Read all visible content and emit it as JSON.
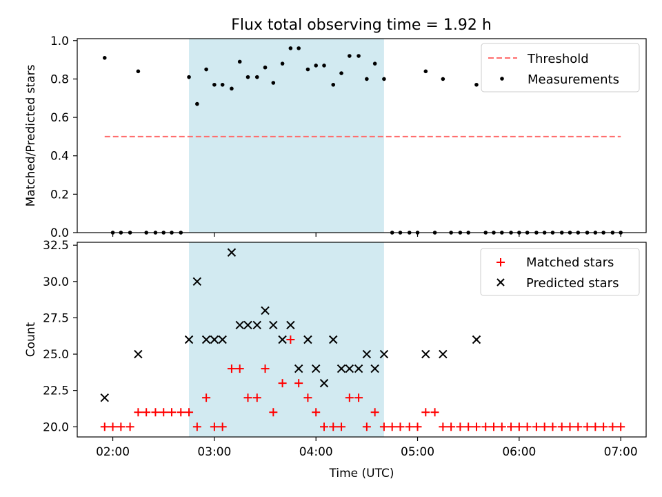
{
  "figure": {
    "title": "Flux total observing time = 1.92 h"
  },
  "chart_data": [
    {
      "type": "scatter",
      "ylabel": "Matched/Predicted stars",
      "xlabel": "",
      "xlim_hours": [
        1.65,
        7.25
      ],
      "ylim": [
        0,
        1.01
      ],
      "yticks": [
        0.0,
        0.2,
        0.4,
        0.6,
        0.8,
        1.0
      ],
      "ytick_labels": [
        "0.0",
        "0.2",
        "0.4",
        "0.6",
        "0.8",
        "1.0"
      ],
      "shaded_interval_hours": [
        2.75,
        4.67
      ],
      "shade_color": "#add8e6",
      "grid": false,
      "legend_position": "top-right",
      "threshold": {
        "name": "Threshold",
        "value": 0.5,
        "x_range_hours": [
          1.92,
          7.0
        ],
        "color": "#ff6b6b",
        "style": "dashed"
      },
      "series": [
        {
          "name": "Measurements",
          "marker": "dot",
          "color": "#000000",
          "points": [
            [
              1.92,
              0.91
            ],
            [
              2.0,
              0.0
            ],
            [
              2.08,
              0.0
            ],
            [
              2.17,
              0.0
            ],
            [
              2.25,
              0.84
            ],
            [
              2.33,
              0.0
            ],
            [
              2.42,
              0.0
            ],
            [
              2.5,
              0.0
            ],
            [
              2.58,
              0.0
            ],
            [
              2.67,
              0.0
            ],
            [
              2.75,
              0.81
            ],
            [
              2.83,
              0.67
            ],
            [
              2.92,
              0.85
            ],
            [
              3.0,
              0.77
            ],
            [
              3.08,
              0.77
            ],
            [
              3.17,
              0.75
            ],
            [
              3.25,
              0.89
            ],
            [
              3.33,
              0.81
            ],
            [
              3.42,
              0.81
            ],
            [
              3.5,
              0.86
            ],
            [
              3.58,
              0.78
            ],
            [
              3.67,
              0.88
            ],
            [
              3.75,
              0.96
            ],
            [
              3.83,
              0.96
            ],
            [
              3.92,
              0.85
            ],
            [
              4.0,
              0.87
            ],
            [
              4.08,
              0.87
            ],
            [
              4.17,
              0.77
            ],
            [
              4.25,
              0.83
            ],
            [
              4.33,
              0.92
            ],
            [
              4.42,
              0.92
            ],
            [
              4.5,
              0.8
            ],
            [
              4.58,
              0.88
            ],
            [
              4.67,
              0.8
            ],
            [
              4.75,
              0.0
            ],
            [
              4.83,
              0.0
            ],
            [
              4.92,
              0.0
            ],
            [
              5.0,
              0.0
            ],
            [
              5.08,
              0.84
            ],
            [
              5.17,
              0.0
            ],
            [
              5.25,
              0.8
            ],
            [
              5.33,
              0.0
            ],
            [
              5.42,
              0.0
            ],
            [
              5.5,
              0.0
            ],
            [
              5.58,
              0.77
            ],
            [
              5.67,
              0.0
            ],
            [
              5.75,
              0.0
            ],
            [
              5.83,
              0.0
            ],
            [
              5.92,
              0.0
            ],
            [
              6.0,
              0.0
            ],
            [
              6.08,
              0.0
            ],
            [
              6.17,
              0.0
            ],
            [
              6.25,
              0.0
            ],
            [
              6.33,
              0.0
            ],
            [
              6.42,
              0.0
            ],
            [
              6.5,
              0.0
            ],
            [
              6.58,
              0.0
            ],
            [
              6.67,
              0.0
            ],
            [
              6.75,
              0.0
            ],
            [
              6.83,
              0.0
            ],
            [
              6.92,
              0.0
            ],
            [
              7.0,
              0.0
            ]
          ]
        }
      ]
    },
    {
      "type": "scatter",
      "ylabel": "Count",
      "xlabel": "Time (UTC)",
      "xlim_hours": [
        1.65,
        7.25
      ],
      "ylim": [
        19.3,
        32.7
      ],
      "yticks": [
        20.0,
        22.5,
        25.0,
        27.5,
        30.0,
        32.5
      ],
      "ytick_labels": [
        "20.0",
        "22.5",
        "25.0",
        "27.5",
        "30.0",
        "32.5"
      ],
      "xticks_hours": [
        2,
        3,
        4,
        5,
        6,
        7
      ],
      "xtick_labels": [
        "02:00",
        "03:00",
        "04:00",
        "05:00",
        "06:00",
        "07:00"
      ],
      "shaded_interval_hours": [
        2.75,
        4.67
      ],
      "shade_color": "#add8e6",
      "grid": false,
      "legend_position": "top-right",
      "series": [
        {
          "name": "Matched stars",
          "marker": "plus",
          "color": "#ff0000",
          "points": [
            [
              1.92,
              20
            ],
            [
              2.0,
              20
            ],
            [
              2.08,
              20
            ],
            [
              2.17,
              20
            ],
            [
              2.25,
              21
            ],
            [
              2.33,
              21
            ],
            [
              2.42,
              21
            ],
            [
              2.5,
              21
            ],
            [
              2.58,
              21
            ],
            [
              2.67,
              21
            ],
            [
              2.75,
              21
            ],
            [
              2.83,
              20
            ],
            [
              2.92,
              22
            ],
            [
              3.0,
              20
            ],
            [
              3.08,
              20
            ],
            [
              3.17,
              24
            ],
            [
              3.25,
              24
            ],
            [
              3.33,
              22
            ],
            [
              3.42,
              22
            ],
            [
              3.5,
              24
            ],
            [
              3.58,
              21
            ],
            [
              3.67,
              23
            ],
            [
              3.75,
              26
            ],
            [
              3.83,
              23
            ],
            [
              3.92,
              22
            ],
            [
              4.0,
              21
            ],
            [
              4.08,
              20
            ],
            [
              4.17,
              20
            ],
            [
              4.25,
              20
            ],
            [
              4.33,
              22
            ],
            [
              4.42,
              22
            ],
            [
              4.5,
              20
            ],
            [
              4.58,
              21
            ],
            [
              4.67,
              20
            ],
            [
              4.75,
              20
            ],
            [
              4.83,
              20
            ],
            [
              4.92,
              20
            ],
            [
              5.0,
              20
            ],
            [
              5.08,
              21
            ],
            [
              5.17,
              21
            ],
            [
              5.25,
              20
            ],
            [
              5.33,
              20
            ],
            [
              5.42,
              20
            ],
            [
              5.5,
              20
            ],
            [
              5.58,
              20
            ],
            [
              5.67,
              20
            ],
            [
              5.75,
              20
            ],
            [
              5.83,
              20
            ],
            [
              5.92,
              20
            ],
            [
              6.0,
              20
            ],
            [
              6.08,
              20
            ],
            [
              6.17,
              20
            ],
            [
              6.25,
              20
            ],
            [
              6.33,
              20
            ],
            [
              6.42,
              20
            ],
            [
              6.5,
              20
            ],
            [
              6.58,
              20
            ],
            [
              6.67,
              20
            ],
            [
              6.75,
              20
            ],
            [
              6.83,
              20
            ],
            [
              6.92,
              20
            ],
            [
              7.0,
              20
            ]
          ]
        },
        {
          "name": "Predicted stars",
          "marker": "x",
          "color": "#000000",
          "points": [
            [
              1.92,
              22
            ],
            [
              2.25,
              25
            ],
            [
              2.75,
              26
            ],
            [
              2.83,
              30
            ],
            [
              2.92,
              26
            ],
            [
              3.0,
              26
            ],
            [
              3.08,
              26
            ],
            [
              3.17,
              32
            ],
            [
              3.25,
              27
            ],
            [
              3.33,
              27
            ],
            [
              3.42,
              27
            ],
            [
              3.5,
              28
            ],
            [
              3.58,
              27
            ],
            [
              3.67,
              26
            ],
            [
              3.75,
              27
            ],
            [
              3.83,
              24
            ],
            [
              3.92,
              26
            ],
            [
              4.0,
              24
            ],
            [
              4.08,
              23
            ],
            [
              4.17,
              26
            ],
            [
              4.25,
              24
            ],
            [
              4.33,
              24
            ],
            [
              4.42,
              24
            ],
            [
              4.5,
              25
            ],
            [
              4.58,
              24
            ],
            [
              4.67,
              25
            ],
            [
              5.08,
              25
            ],
            [
              5.25,
              25
            ],
            [
              5.58,
              26
            ]
          ]
        }
      ]
    }
  ]
}
